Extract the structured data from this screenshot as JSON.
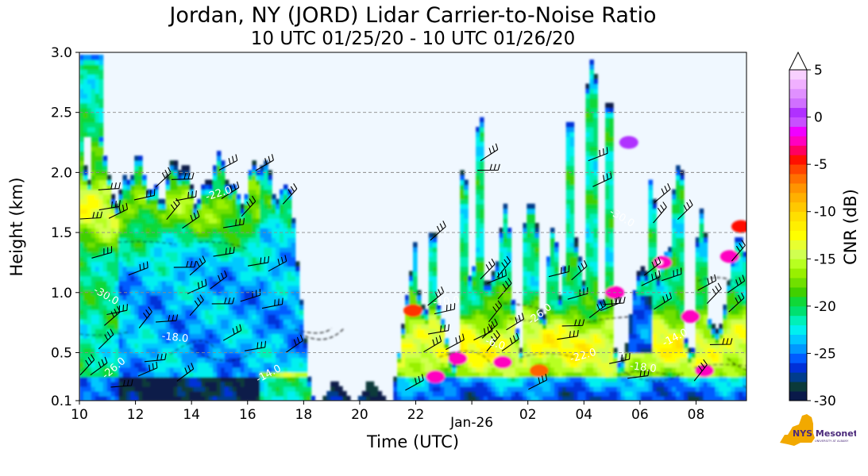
{
  "title": "Jordan, NY (JORD) Lidar Carrier-to-Noise Ratio",
  "subtitle": "10 UTC 01/25/20 - 10 UTC 01/26/20",
  "chart_data": {
    "type": "heatmap",
    "xlabel": "Time (UTC)",
    "ylabel": "Height (km)",
    "x_tick_labels": [
      "10",
      "12",
      "14",
      "16",
      "18",
      "20",
      "22",
      "Jan-26",
      "02",
      "04",
      "06",
      "08"
    ],
    "x_tick_hours": [
      10,
      12,
      14,
      16,
      18,
      20,
      22,
      24,
      26,
      28,
      30,
      32
    ],
    "xlim_hours": [
      10,
      33.8
    ],
    "y_ticks": [
      0.1,
      0.5,
      1.0,
      1.5,
      2.0,
      2.5,
      3.0
    ],
    "y_tick_labels": [
      "0.1",
      "0.5",
      "1.0",
      "1.5",
      "2.0",
      "2.5",
      "3.0"
    ],
    "ylim": [
      0.1,
      3.0
    ],
    "grid": "horizontal dashed",
    "colorbar": {
      "label": "CNR (dB)",
      "range": [
        -30,
        5
      ],
      "step": 1,
      "tick_values": [
        5,
        0,
        -5,
        -10,
        -15,
        -20,
        -25,
        -30
      ],
      "tick_labels": [
        "5",
        "0",
        "-5",
        "-10",
        "-15",
        "-20",
        "-25",
        "-30"
      ],
      "extend": "max"
    },
    "contour_labels": [
      "-26.0",
      "-22.0",
      "-18.0",
      "-30.0",
      "-14.0",
      "-10.0",
      "-6.0"
    ],
    "background_color": "#f0f8ff"
  },
  "logo": {
    "main": "NYS Mesonet",
    "small": "UNIVERSITY AT ALBANY"
  }
}
